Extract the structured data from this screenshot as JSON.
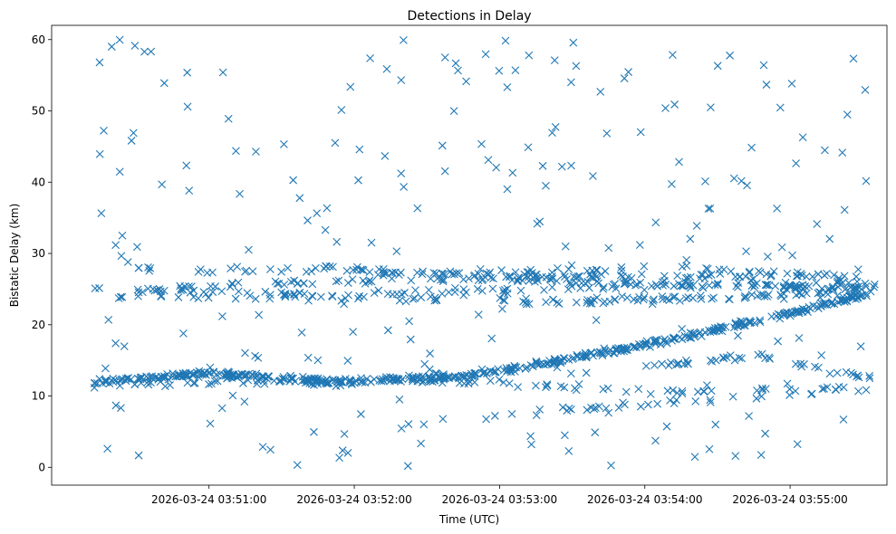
{
  "chart_data": {
    "type": "scatter",
    "title": "Detections in Delay",
    "xlabel": "Time (UTC)",
    "ylabel": "Bistatic Delay (km)",
    "x_domain": [
      "2026-03-24 03:50:12",
      "2026-03-24 03:55:35"
    ],
    "xlim": [
      "2026-03-24 03:49:55",
      "2026-03-24 03:55:40"
    ],
    "ylim": [
      -2.5,
      62
    ],
    "x_ticks": [
      "2026-03-24 03:51:00",
      "2026-03-24 03:52:00",
      "2026-03-24 03:53:00",
      "2026-03-24 03:54:00",
      "2026-03-24 03:55:00"
    ],
    "y_ticks": [
      0,
      10,
      20,
      30,
      40,
      50,
      60
    ],
    "marker": "x",
    "color": "#1f77b4",
    "grid": false,
    "tracks": [
      {
        "points": [
          [
            0.0,
            12.0
          ],
          [
            0.15,
            13.2
          ],
          [
            0.3,
            12.0
          ],
          [
            0.45,
            12.5
          ],
          [
            0.58,
            14.6
          ],
          [
            0.72,
            17.5
          ],
          [
            0.86,
            20.8
          ],
          [
            1.0,
            24.5
          ]
        ]
      },
      {
        "points": [
          [
            0.0,
            25.0
          ],
          [
            0.3,
            24.2
          ],
          [
            0.6,
            25.0
          ],
          [
            1.0,
            26.0
          ]
        ]
      },
      {
        "points": [
          [
            0.28,
            28.0
          ],
          [
            0.6,
            26.0
          ],
          [
            1.0,
            25.0
          ]
        ]
      },
      {
        "points": [
          [
            0.1,
            25.5
          ],
          [
            0.5,
            26.5
          ],
          [
            0.95,
            27.0
          ]
        ]
      },
      {
        "points": [
          [
            0.0,
            11.5
          ],
          [
            0.4,
            12.3
          ],
          [
            0.75,
            10.5
          ],
          [
            1.0,
            11.3
          ]
        ]
      },
      {
        "points": [
          [
            0.1,
            13.2
          ],
          [
            0.3,
            11.6
          ],
          [
            0.45,
            13.0
          ]
        ]
      },
      {
        "points": [
          [
            0.7,
            14.2
          ],
          [
            0.85,
            15.5
          ],
          [
            1.0,
            12.5
          ]
        ]
      },
      {
        "points": [
          [
            0.58,
            8.0
          ],
          [
            0.8,
            9.5
          ],
          [
            1.0,
            11.0
          ]
        ]
      },
      {
        "points": [
          [
            0.05,
            28.0
          ],
          [
            0.5,
            27.0
          ],
          [
            0.9,
            26.5
          ]
        ]
      },
      {
        "points": [
          [
            0.55,
            23.0
          ],
          [
            0.85,
            24.0
          ],
          [
            1.0,
            25.5
          ]
        ]
      },
      {
        "points": [
          [
            0.0,
            24.0
          ],
          [
            0.5,
            23.5
          ],
          [
            1.0,
            24.2
          ]
        ]
      },
      {
        "points": [
          [
            0.35,
            27.0
          ],
          [
            0.75,
            28.0
          ],
          [
            1.0,
            26.5
          ]
        ]
      }
    ],
    "track_counts": [
      500,
      110,
      90,
      80,
      80,
      40,
      40,
      30,
      50,
      60,
      60,
      50
    ],
    "random_points": {
      "count": 250,
      "x_range": [
        0,
        1
      ],
      "y_range": [
        0,
        60
      ]
    }
  }
}
